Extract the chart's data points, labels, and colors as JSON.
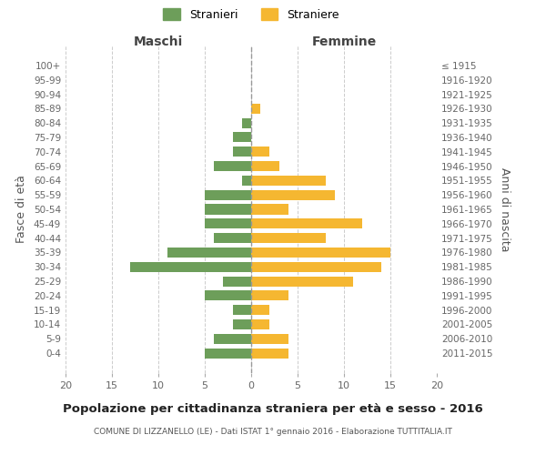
{
  "age_groups": [
    "0-4",
    "5-9",
    "10-14",
    "15-19",
    "20-24",
    "25-29",
    "30-34",
    "35-39",
    "40-44",
    "45-49",
    "50-54",
    "55-59",
    "60-64",
    "65-69",
    "70-74",
    "75-79",
    "80-84",
    "85-89",
    "90-94",
    "95-99",
    "100+"
  ],
  "birth_years": [
    "2011-2015",
    "2006-2010",
    "2001-2005",
    "1996-2000",
    "1991-1995",
    "1986-1990",
    "1981-1985",
    "1976-1980",
    "1971-1975",
    "1966-1970",
    "1961-1965",
    "1956-1960",
    "1951-1955",
    "1946-1950",
    "1941-1945",
    "1936-1940",
    "1931-1935",
    "1926-1930",
    "1921-1925",
    "1916-1920",
    "≤ 1915"
  ],
  "males": [
    -5,
    -4,
    -2,
    -2,
    -5,
    -3,
    -13,
    -9,
    -4,
    -5,
    -5,
    -5,
    -1,
    -4,
    -2,
    -2,
    -1,
    0,
    0,
    0,
    0
  ],
  "females": [
    4,
    4,
    2,
    2,
    4,
    11,
    14,
    15,
    8,
    12,
    4,
    9,
    8,
    3,
    2,
    0,
    0,
    1,
    0,
    0,
    0
  ],
  "male_color": "#6d9e5a",
  "female_color": "#f5b731",
  "background_color": "#ffffff",
  "grid_color": "#cccccc",
  "title": "Popolazione per cittadinanza straniera per età e sesso - 2016",
  "subtitle": "COMUNE DI LIZZANELLO (LE) - Dati ISTAT 1° gennaio 2016 - Elaborazione TUTTITALIA.IT",
  "xlabel_left": "Maschi",
  "xlabel_right": "Femmine",
  "ylabel_left": "Fasce di età",
  "ylabel_right": "Anni di nascita",
  "legend_male": "Stranieri",
  "legend_female": "Straniere",
  "xlim": [
    -20,
    20
  ],
  "xticks": [
    -20,
    -15,
    -10,
    -5,
    0,
    5,
    10,
    15,
    20
  ],
  "xticklabels": [
    "20",
    "15",
    "10",
    "5",
    "0",
    "5",
    "10",
    "15",
    "20"
  ]
}
